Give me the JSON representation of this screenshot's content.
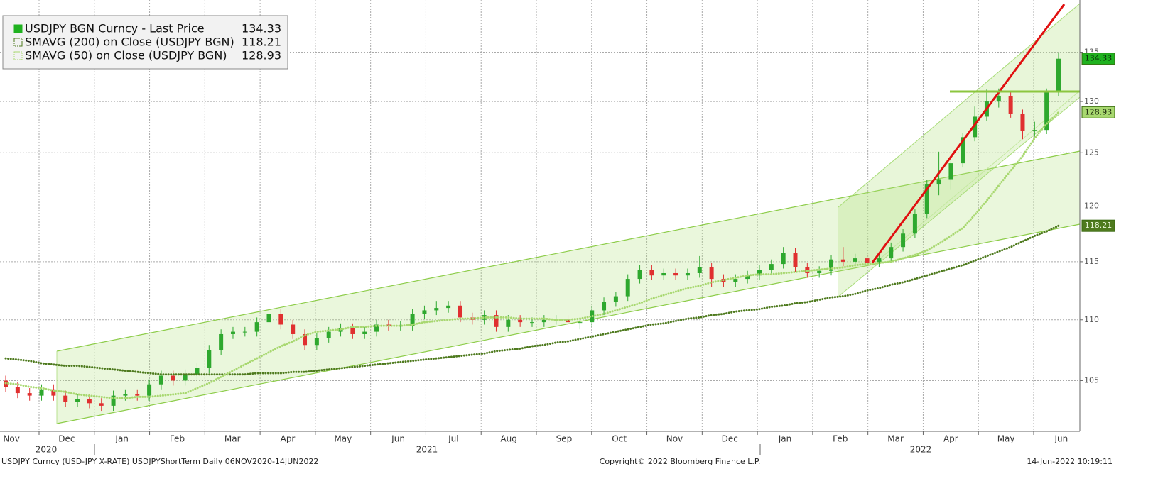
{
  "chart_data": {
    "type": "candlestick",
    "log_scale": true,
    "grid": true,
    "ylim": [
      101,
      140.5
    ],
    "yticks": [
      105,
      110,
      115,
      120,
      125,
      130,
      135
    ],
    "up_color": "#2ea82e",
    "down_color": "#e03030",
    "months": [
      "Nov",
      "Dec",
      "Jan",
      "Feb",
      "Mar",
      "Apr",
      "May",
      "Jun",
      "Jul",
      "Aug",
      "Sep",
      "Oct",
      "Nov",
      "Dec",
      "Jan",
      "Feb",
      "Mar",
      "Apr",
      "May",
      "Jun"
    ],
    "years": [
      "2020",
      "2021",
      "2022"
    ],
    "footer": {
      "left": "USDJPY Curncy (USD-JPY X-RATE) USDJPYShortTerm  Daily 06NOV2020-14JUN2022",
      "center": "Copyright© 2022 Bloomberg Finance L.P.",
      "right": "14-Jun-2022 10:19:11"
    },
    "series": [
      {
        "name": "USDJPY BGN Curncy - Last Price",
        "color": "#1fb21f",
        "open": [
          105.0,
          104.5,
          104.0,
          103.8,
          104.3,
          103.8,
          103.3,
          103.5,
          103.2,
          103.0,
          103.8,
          103.9,
          103.8,
          104.7,
          105.4,
          105.0,
          105.5,
          106.0,
          107.5,
          108.8,
          109.0,
          109.0,
          109.8,
          110.5,
          109.6,
          108.8,
          107.9,
          108.5,
          109.0,
          109.3,
          108.8,
          109.0,
          109.6,
          109.5,
          109.5,
          110.5,
          110.8,
          111.0,
          111.2,
          110.2,
          110.0,
          110.4,
          109.4,
          110.0,
          109.8,
          109.8,
          110.0,
          110.0,
          109.8,
          109.8,
          110.8,
          111.5,
          112.0,
          113.5,
          114.3,
          113.8,
          114.0,
          113.8,
          114.0,
          114.5,
          113.5,
          113.2,
          113.5,
          113.8,
          114.3,
          114.8,
          115.8,
          114.5,
          114.0,
          114.2,
          115.2,
          115.0,
          115.3,
          114.9,
          115.3,
          116.3,
          117.5,
          119.3,
          122.0,
          122.5,
          124.0,
          126.5,
          128.5,
          130.0,
          130.5,
          128.8,
          127.1,
          127.2,
          130.9
        ],
        "high": [
          105.4,
          104.9,
          104.4,
          104.7,
          104.7,
          104.2,
          103.9,
          103.9,
          103.6,
          104.2,
          104.3,
          104.3,
          105.1,
          105.8,
          105.8,
          105.9,
          106.4,
          107.9,
          109.2,
          109.4,
          109.4,
          110.2,
          110.9,
          110.9,
          110.0,
          109.2,
          108.9,
          109.4,
          109.7,
          109.7,
          109.4,
          110.0,
          110.0,
          109.9,
          110.9,
          111.2,
          111.6,
          111.6,
          111.6,
          110.6,
          110.8,
          110.8,
          110.4,
          110.4,
          110.2,
          110.4,
          110.4,
          110.4,
          110.2,
          111.2,
          111.9,
          112.4,
          113.9,
          114.7,
          114.7,
          114.4,
          114.4,
          114.4,
          115.5,
          114.9,
          113.9,
          113.9,
          114.2,
          114.7,
          115.2,
          116.3,
          116.2,
          114.9,
          114.6,
          115.6,
          116.3,
          115.7,
          115.7,
          115.7,
          116.7,
          117.9,
          119.7,
          122.4,
          125.1,
          124.4,
          126.9,
          129.5,
          131.2,
          131.3,
          130.9,
          129.2,
          128.0,
          131.3,
          134.9
        ],
        "low": [
          104.1,
          103.6,
          103.4,
          103.4,
          103.4,
          102.9,
          102.9,
          102.8,
          102.6,
          102.6,
          103.4,
          103.4,
          103.4,
          104.3,
          104.6,
          104.6,
          105.1,
          105.6,
          107.1,
          108.4,
          108.6,
          108.6,
          109.4,
          109.2,
          108.4,
          107.5,
          107.5,
          108.1,
          108.6,
          108.4,
          108.4,
          108.6,
          109.1,
          109.1,
          109.1,
          110.1,
          110.4,
          110.6,
          109.8,
          109.6,
          109.6,
          109.0,
          109.0,
          109.4,
          109.4,
          109.4,
          109.6,
          109.4,
          109.2,
          109.4,
          110.4,
          111.1,
          111.6,
          113.1,
          113.4,
          113.4,
          113.4,
          113.4,
          113.6,
          112.8,
          112.8,
          112.8,
          113.1,
          113.4,
          113.9,
          114.4,
          114.1,
          113.6,
          113.6,
          113.8,
          114.6,
          114.6,
          114.5,
          114.5,
          114.9,
          115.9,
          117.1,
          118.9,
          121.0,
          121.5,
          123.6,
          126.1,
          128.1,
          129.4,
          128.4,
          126.3,
          126.5,
          126.8,
          130.5
        ],
        "close": [
          104.5,
          104.0,
          103.8,
          104.3,
          103.8,
          103.3,
          103.5,
          103.2,
          103.0,
          103.8,
          103.9,
          103.8,
          104.7,
          105.4,
          105.0,
          105.5,
          106.0,
          107.5,
          108.8,
          109.0,
          109.0,
          109.8,
          110.5,
          109.6,
          108.8,
          107.9,
          108.5,
          109.0,
          109.3,
          108.8,
          109.0,
          109.6,
          109.5,
          109.5,
          110.5,
          110.8,
          111.0,
          111.2,
          110.2,
          110.0,
          110.4,
          109.4,
          110.0,
          109.8,
          109.8,
          110.0,
          110.0,
          109.8,
          109.8,
          110.8,
          111.5,
          112.0,
          113.5,
          114.3,
          113.8,
          114.0,
          113.8,
          114.0,
          114.5,
          113.5,
          113.2,
          113.5,
          113.8,
          114.3,
          114.8,
          115.8,
          114.5,
          114.0,
          114.2,
          115.2,
          115.0,
          115.3,
          114.9,
          115.3,
          116.3,
          117.5,
          119.3,
          122.0,
          122.5,
          124.0,
          126.5,
          128.5,
          130.0,
          130.5,
          128.8,
          127.1,
          127.2,
          130.9,
          134.33
        ]
      },
      {
        "name": "SMAVG (200)  on Close (USDJPY BGN)",
        "color": "#4e7a1e",
        "values": [
          106.8,
          106.7,
          106.6,
          106.4,
          106.3,
          106.2,
          106.2,
          106.1,
          106.0,
          105.9,
          105.8,
          105.7,
          105.6,
          105.5,
          105.5,
          105.5,
          105.5,
          105.5,
          105.5,
          105.5,
          105.5,
          105.6,
          105.6,
          105.6,
          105.7,
          105.7,
          105.8,
          105.9,
          106.0,
          106.1,
          106.2,
          106.3,
          106.4,
          106.5,
          106.6,
          106.7,
          106.8,
          106.9,
          107.0,
          107.1,
          107.2,
          107.4,
          107.5,
          107.6,
          107.8,
          107.9,
          108.1,
          108.2,
          108.4,
          108.6,
          108.8,
          109.0,
          109.2,
          109.4,
          109.6,
          109.7,
          109.9,
          110.1,
          110.2,
          110.4,
          110.5,
          110.7,
          110.8,
          110.9,
          111.1,
          111.2,
          111.4,
          111.5,
          111.7,
          111.9,
          112.0,
          112.2,
          112.5,
          112.7,
          113.0,
          113.2,
          113.5,
          113.8,
          114.1,
          114.4,
          114.7,
          115.1,
          115.5,
          115.9,
          116.3,
          116.8,
          117.3,
          117.7,
          118.21
        ]
      },
      {
        "name": "SMAVG (50)  on Close (USDJPY BGN)",
        "color": "#a8d870",
        "values": [
          104.8,
          104.7,
          104.5,
          104.4,
          104.2,
          104.1,
          103.9,
          103.8,
          103.7,
          103.6,
          103.6,
          103.7,
          103.7,
          103.8,
          103.9,
          104.0,
          104.4,
          104.8,
          105.3,
          105.8,
          106.3,
          106.8,
          107.3,
          107.8,
          108.2,
          108.7,
          109.0,
          109.1,
          109.2,
          109.4,
          109.4,
          109.5,
          109.5,
          109.5,
          109.6,
          109.8,
          109.9,
          110.0,
          110.1,
          110.1,
          110.2,
          110.2,
          110.2,
          110.1,
          110.1,
          110.1,
          110.0,
          110.0,
          110.1,
          110.3,
          110.5,
          110.8,
          111.1,
          111.4,
          111.8,
          112.1,
          112.4,
          112.7,
          112.9,
          113.2,
          113.4,
          113.6,
          113.8,
          113.9,
          113.9,
          114.0,
          114.1,
          114.2,
          114.3,
          114.4,
          114.5,
          114.7,
          114.8,
          114.9,
          115.0,
          115.3,
          115.6,
          116.0,
          116.6,
          117.3,
          118.0,
          119.2,
          120.5,
          121.9,
          123.3,
          124.7,
          126.4,
          127.8,
          128.93
        ]
      }
    ]
  }
}
